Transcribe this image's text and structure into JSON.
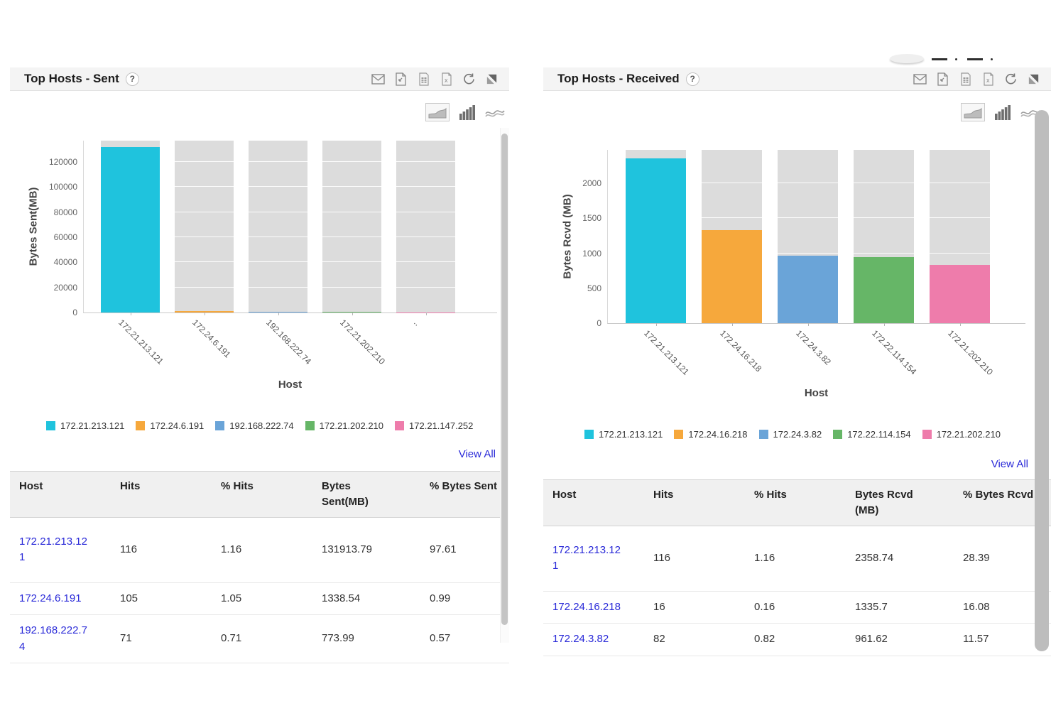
{
  "colors": {
    "series": [
      "#1fc3dd",
      "#f6a83c",
      "#6aa4d8",
      "#66b667",
      "#ee7cab"
    ],
    "background_bar": "#dcdcdc",
    "link_accent": "#2a2ad8",
    "header_band": "#f4f4f4"
  },
  "panels": [
    {
      "title": "Top Hosts - Sent",
      "help_label": "?",
      "toolbar_icons": [
        "email",
        "export-pdf",
        "export-csv",
        "export-excel",
        "refresh",
        "resize"
      ],
      "chart_toggles": [
        "area-chart",
        "bar-chart",
        "line-chart"
      ],
      "view_all_label": "View All",
      "legend": [
        {
          "label": "172.21.213.121",
          "color": "#1fc3dd"
        },
        {
          "label": "172.24.6.191",
          "color": "#f6a83c"
        },
        {
          "label": "192.168.222.74",
          "color": "#6aa4d8"
        },
        {
          "label": "172.21.202.210",
          "color": "#66b667"
        },
        {
          "label": "172.21.147.252",
          "color": "#ee7cab"
        }
      ],
      "chart_data": {
        "type": "bar",
        "title": "",
        "xlabel": "Host",
        "ylabel": "Bytes Sent(MB)",
        "ylim": [
          0,
          137000
        ],
        "yticks": [
          0,
          20000,
          40000,
          60000,
          80000,
          100000,
          120000
        ],
        "grid": true,
        "legend_position": "bottom",
        "categories": [
          "172.21.213.121",
          "172.24.6.191",
          "192.168.222.74",
          "172.21.202.210",
          ".."
        ],
        "values": [
          131913.79,
          1338.54,
          773.99,
          500,
          100
        ],
        "bar_colors": [
          "#1fc3dd",
          "#f6a83c",
          "#6aa4d8",
          "#66b667",
          "#ee7cab"
        ],
        "background_bar_color": "#dcdcdc"
      },
      "table": {
        "headers": [
          "Host",
          "Hits",
          "% Hits",
          "Bytes Sent(MB)",
          "% Bytes Sent"
        ],
        "rows": [
          [
            "172.21.213.121",
            "116",
            "1.16",
            "131913.79",
            "97.61"
          ],
          [
            "172.24.6.191",
            "105",
            "1.05",
            "1338.54",
            "0.99"
          ],
          [
            "192.168.222.74",
            "71",
            "0.71",
            "773.99",
            "0.57"
          ]
        ]
      }
    },
    {
      "title": "Top Hosts - Received",
      "help_label": "?",
      "toolbar_icons": [
        "email",
        "export-pdf",
        "export-csv",
        "export-excel",
        "refresh",
        "resize"
      ],
      "chart_toggles": [
        "area-chart",
        "bar-chart",
        "line-chart"
      ],
      "view_all_label": "View All",
      "legend": [
        {
          "label": "172.21.213.121",
          "color": "#1fc3dd"
        },
        {
          "label": "172.24.16.218",
          "color": "#f6a83c"
        },
        {
          "label": "172.24.3.82",
          "color": "#6aa4d8"
        },
        {
          "label": "172.22.114.154",
          "color": "#66b667"
        },
        {
          "label": "172.21.202.210",
          "color": "#ee7cab"
        }
      ],
      "chart_data": {
        "type": "bar",
        "title": "",
        "xlabel": "Host",
        "ylabel": "Bytes Rcvd (MB)",
        "ylim": [
          0,
          2480
        ],
        "yticks": [
          0,
          500,
          1000,
          1500,
          2000
        ],
        "grid": true,
        "legend_position": "bottom",
        "categories": [
          "172.21.213.121",
          "172.24.16.218",
          "172.24.3.82",
          "172.22.114.154",
          "172.21.202.210"
        ],
        "values": [
          2358.74,
          1335.7,
          961.62,
          950,
          830
        ],
        "bar_colors": [
          "#1fc3dd",
          "#f6a83c",
          "#6aa4d8",
          "#66b667",
          "#ee7cab"
        ],
        "background_bar_color": "#dcdcdc"
      },
      "table": {
        "headers": [
          "Host",
          "Hits",
          "% Hits",
          "Bytes Rcvd (MB)",
          "% Bytes Rcvd"
        ],
        "rows": [
          [
            "172.21.213.121",
            "116",
            "1.16",
            "2358.74",
            "28.39"
          ],
          [
            "172.24.16.218",
            "16",
            "0.16",
            "1335.7",
            "16.08"
          ],
          [
            "172.24.3.82",
            "82",
            "0.82",
            "961.62",
            "11.57"
          ]
        ]
      }
    }
  ]
}
